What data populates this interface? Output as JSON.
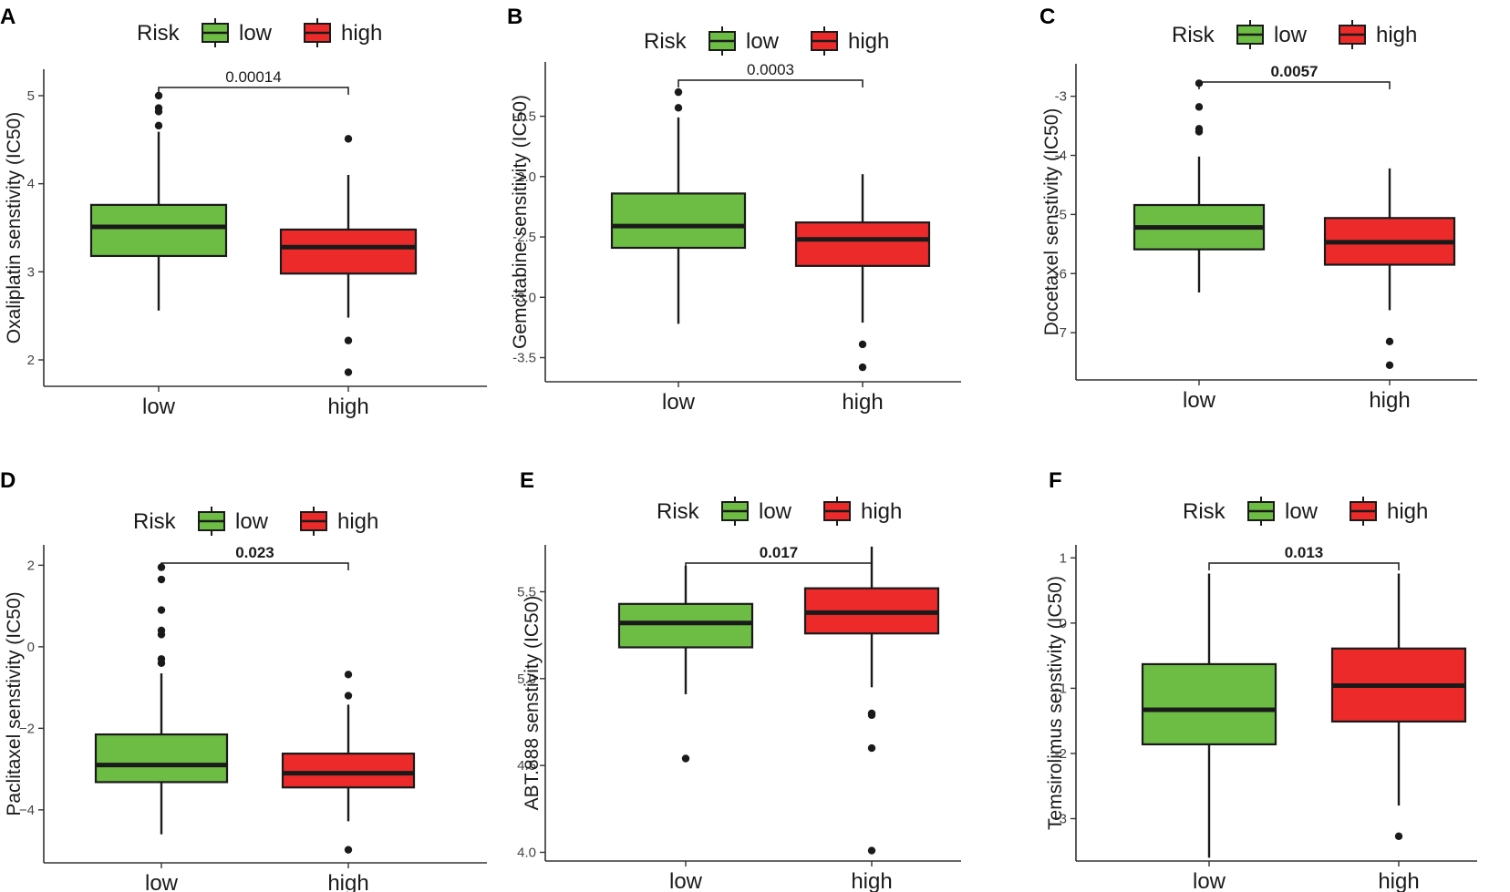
{
  "colors": {
    "low": "#6dbd45",
    "high": "#ec2a2a",
    "outline": "#1a1a1a",
    "axis": "#333333"
  },
  "legend": {
    "title": "Risk",
    "items": [
      "low",
      "high"
    ]
  },
  "chart_data": [
    {
      "type": "box",
      "panel": "A",
      "ylabel": "Oxaliplatin senstivity (IC50)",
      "categories": [
        "low",
        "high"
      ],
      "ylim": [
        1.7,
        5.3
      ],
      "yticks": [
        2,
        3,
        4,
        5
      ],
      "ytick_labels": [
        "2",
        "3",
        "4",
        "5"
      ],
      "pvalue": "0.00014",
      "pvalue_bold": false,
      "boxes": [
        {
          "group": "low",
          "whisker_low": 2.56,
          "q1": 3.18,
          "median": 3.51,
          "q3": 3.76,
          "whisker_high": 4.59,
          "outliers": [
            4.66,
            4.82,
            4.86,
            5.0
          ]
        },
        {
          "group": "high",
          "whisker_low": 2.48,
          "q1": 2.98,
          "median": 3.28,
          "q3": 3.48,
          "whisker_high": 4.1,
          "outliers": [
            4.51,
            2.22,
            1.86
          ]
        }
      ]
    },
    {
      "type": "box",
      "panel": "B",
      "ylabel": "Gemcitabine sensitivity (IC50)",
      "categories": [
        "low",
        "high"
      ],
      "ylim": [
        -3.7,
        -1.05
      ],
      "yticks": [
        -1.5,
        -2.0,
        -2.5,
        -3.0,
        -3.5
      ],
      "ytick_labels": [
        "-1.5",
        "-2.0",
        "-2.5",
        "-3.0",
        "-3.5"
      ],
      "pvalue": "0.0003",
      "pvalue_bold": false,
      "boxes": [
        {
          "group": "low",
          "whisker_low": -3.22,
          "q1": -2.59,
          "median": -2.41,
          "q3": -2.14,
          "whisker_high": -1.51,
          "outliers": [
            -1.43,
            -1.3
          ]
        },
        {
          "group": "high",
          "whisker_low": -3.21,
          "q1": -2.74,
          "median": -2.52,
          "q3": -2.38,
          "whisker_high": -1.98,
          "outliers": [
            -3.39,
            -3.58
          ]
        }
      ]
    },
    {
      "type": "box",
      "panel": "C",
      "ylabel": "Docetaxel senstivity (IC50)",
      "categories": [
        "low",
        "high"
      ],
      "ylim": [
        -7.8,
        -2.45
      ],
      "yticks": [
        -3,
        -4,
        -5,
        -6,
        -7
      ],
      "ytick_labels": [
        "-3",
        "-4",
        "-5",
        "-6",
        "-7"
      ],
      "pvalue": "0.0057",
      "pvalue_bold": true,
      "boxes": [
        {
          "group": "low",
          "whisker_low": -6.32,
          "q1": -5.59,
          "median": -5.22,
          "q3": -4.84,
          "whisker_high": -4.02,
          "outliers": [
            -3.6,
            -3.55,
            -3.18,
            -2.78
          ]
        },
        {
          "group": "high",
          "whisker_low": -6.62,
          "q1": -5.85,
          "median": -5.47,
          "q3": -5.06,
          "whisker_high": -4.22,
          "outliers": [
            -7.15,
            -7.55
          ]
        }
      ]
    },
    {
      "type": "box",
      "panel": "D",
      "ylabel": "Paclitaxel senstivity (IC50)",
      "categories": [
        "low",
        "high"
      ],
      "ylim": [
        -5.3,
        2.5
      ],
      "yticks": [
        2,
        0,
        -2,
        -4
      ],
      "ytick_labels": [
        "2",
        "0",
        "−2",
        "−4"
      ],
      "pvalue": "0.023",
      "pvalue_bold": true,
      "boxes": [
        {
          "group": "low",
          "whisker_low": -4.6,
          "q1": -3.32,
          "median": -2.9,
          "q3": -2.15,
          "whisker_high": -0.65,
          "outliers": [
            -0.4,
            -0.3,
            0.3,
            0.4,
            0.9,
            1.65,
            1.95
          ]
        },
        {
          "group": "high",
          "whisker_low": -4.28,
          "q1": -3.45,
          "median": -3.1,
          "q3": -2.62,
          "whisker_high": -1.42,
          "outliers": [
            -1.2,
            -0.68,
            -4.98
          ]
        }
      ]
    },
    {
      "type": "box",
      "panel": "E",
      "ylabel": "ABT.888 senstivity (IC50)",
      "categories": [
        "low",
        "high"
      ],
      "ylim": [
        3.95,
        5.77
      ],
      "yticks": [
        5.5,
        5.0,
        4.5,
        4.0
      ],
      "ytick_labels": [
        "5.5",
        "5.0",
        "4.5",
        "4.0"
      ],
      "pvalue": "0.017",
      "pvalue_bold": true,
      "boxes": [
        {
          "group": "low",
          "whisker_low": 4.91,
          "q1": 5.18,
          "median": 5.32,
          "q3": 5.43,
          "whisker_high": 5.65,
          "outliers": [
            4.54
          ]
        },
        {
          "group": "high",
          "whisker_low": 4.95,
          "q1": 5.26,
          "median": 5.38,
          "q3": 5.52,
          "whisker_high": 5.76,
          "outliers": [
            4.79,
            4.8,
            4.6,
            4.01
          ]
        }
      ]
    },
    {
      "type": "box",
      "panel": "F",
      "ylabel": "Temsirolimus senstivity (IC50)",
      "categories": [
        "low",
        "high"
      ],
      "ylim": [
        -3.65,
        1.2
      ],
      "yticks": [
        1,
        0,
        -1,
        -2,
        -3
      ],
      "ytick_labels": [
        "1",
        "0",
        "-1",
        "-2",
        "-3"
      ],
      "pvalue": "0.013",
      "pvalue_bold": true,
      "boxes": [
        {
          "group": "low",
          "whisker_low": -3.6,
          "q1": -1.86,
          "median": -1.33,
          "q3": -0.63,
          "whisker_high": 0.76,
          "outliers": []
        },
        {
          "group": "high",
          "whisker_low": -2.8,
          "q1": -1.51,
          "median": -0.96,
          "q3": -0.39,
          "whisker_high": 0.76,
          "outliers": [
            -3.27
          ]
        }
      ]
    }
  ]
}
